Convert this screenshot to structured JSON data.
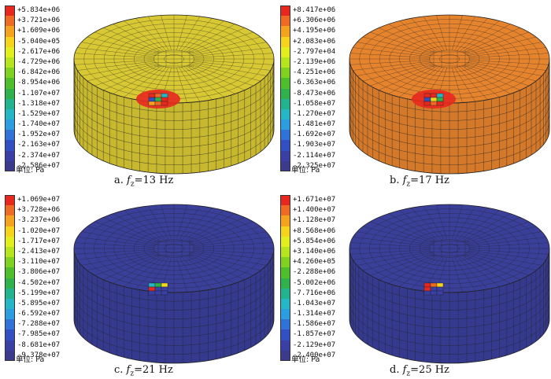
{
  "figure": {
    "unit_label": "单位: Pa",
    "panels": [
      {
        "id": "a",
        "caption_prefix": "a. ",
        "caption_var": "f",
        "caption_sub": "z",
        "caption_suffix": "=13 Hz",
        "dominant_color": "#d8c833",
        "hotspot": "red-orange with blue/green center",
        "legend_values": [
          "+5.834e+06",
          "+3.721e+06",
          "+1.609e+06",
          "-5.040e+05",
          "-2.617e+06",
          "-4.729e+06",
          "-6.842e+06",
          "-8.954e+06",
          "-1.107e+07",
          "-1.318e+07",
          "-1.529e+07",
          "-1.740e+07",
          "-1.952e+07",
          "-2.163e+07",
          "-2.374e+07",
          "-2.586e+07"
        ]
      },
      {
        "id": "b",
        "caption_prefix": "b. ",
        "caption_var": "f",
        "caption_sub": "z",
        "caption_suffix": "=17 Hz",
        "dominant_color": "#e6842e",
        "hotspot": "red with blue/green/yellow center",
        "legend_values": [
          "+8.417e+06",
          "+6.306e+06",
          "+4.195e+06",
          "+2.083e+06",
          "-2.797e+04",
          "-2.139e+06",
          "-4.251e+06",
          "-6.363e+06",
          "-8.473e+06",
          "-1.058e+07",
          "-1.270e+07",
          "-1.481e+07",
          "-1.692e+07",
          "-1.903e+07",
          "-2.114e+07",
          "-2.325e+07"
        ]
      },
      {
        "id": "c",
        "caption_prefix": "c. ",
        "caption_var": "f",
        "caption_sub": "z",
        "caption_suffix": "=21 Hz",
        "dominant_color": "#3a3f9a",
        "hotspot": "cyan/green/yellow/red small patch",
        "legend_values": [
          "+1.069e+07",
          "+3.728e+06",
          "-3.237e+06",
          "-1.020e+07",
          "-1.717e+07",
          "-2.413e+07",
          "-3.110e+07",
          "-3.806e+07",
          "-4.502e+07",
          "-5.199e+07",
          "-5.895e+07",
          "-6.592e+07",
          "-7.288e+07",
          "-7.985e+07",
          "-8.681e+07",
          "-9.378e+07"
        ]
      },
      {
        "id": "d",
        "caption_prefix": "d. ",
        "caption_var": "f",
        "caption_sub": "z",
        "caption_suffix": "=25 Hz",
        "dominant_color": "#3a3f9a",
        "hotspot": "small red/orange/yellow patch",
        "legend_values": [
          "+1.671e+07",
          "+1.400e+07",
          "+1.128e+07",
          "+8.568e+06",
          "+5.854e+06",
          "+3.140e+06",
          "+4.260e+05",
          "-2.288e+06",
          "-5.002e+06",
          "-7.716e+06",
          "-1.043e+07",
          "-1.314e+07",
          "-1.586e+07",
          "-1.857e+07",
          "-2.129e+07",
          "-2.400e+07"
        ]
      }
    ],
    "legend_colors": [
      "#e8281f",
      "#ef6a22",
      "#f5a31e",
      "#f6d41c",
      "#e2ef1c",
      "#b6e41d",
      "#7fd220",
      "#4fbe2b",
      "#2fb14b",
      "#22b48f",
      "#26b7c7",
      "#2a9ee0",
      "#2f73d8",
      "#3350c2",
      "#3a3fa6",
      "#3b3a8c"
    ]
  }
}
